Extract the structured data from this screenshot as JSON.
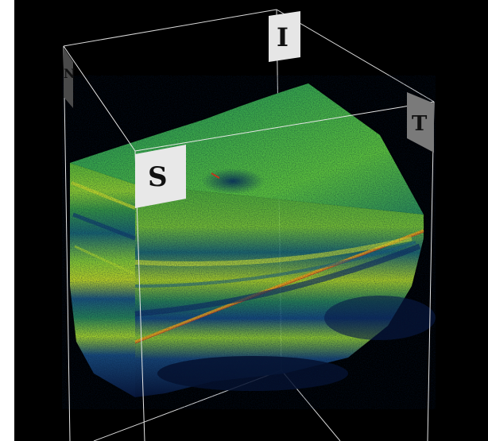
{
  "viewer": {
    "background_color": "#000000",
    "bounding_box_color": "#e6e6e6",
    "orientation_labels": {
      "superior": "S",
      "inferior": "I",
      "temporal": "T",
      "nasal": "N"
    },
    "colormap": [
      "#0c1a4a",
      "#0f3f7a",
      "#136f8f",
      "#1f9a6a",
      "#4cc23a",
      "#9ee02e",
      "#e0e81e",
      "#f0a018",
      "#e0401a"
    ]
  }
}
